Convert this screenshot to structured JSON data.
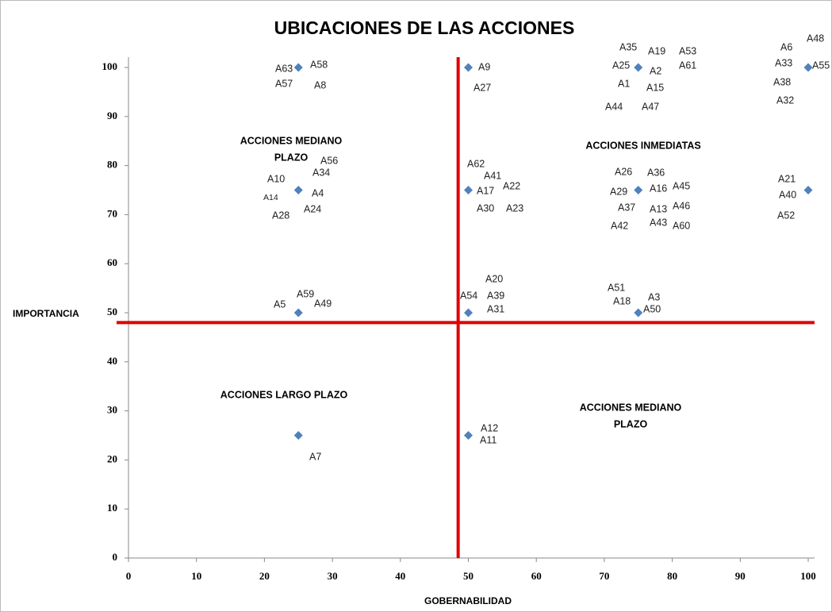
{
  "chart_data": {
    "type": "scatter",
    "title": "UBICACIONES DE LAS ACCIONES",
    "x_label": "GOBERNABILIDAD",
    "y_label": "IMPORTANCIA",
    "x": [
      25,
      50,
      75,
      100,
      25,
      50,
      75,
      100,
      25,
      50,
      75,
      25,
      50
    ],
    "y": [
      100,
      100,
      100,
      100,
      75,
      75,
      75,
      75,
      50,
      50,
      50,
      25,
      25
    ],
    "color": "#4f81bd",
    "xlim": [
      0,
      100
    ],
    "xticks": [
      0,
      10,
      20,
      30,
      40,
      50,
      60,
      70,
      80,
      90,
      100
    ],
    "ylim": [
      0,
      100
    ],
    "yticks": [
      0,
      10,
      20,
      30,
      40,
      50,
      60,
      70,
      80,
      90,
      100
    ],
    "grid": false,
    "reference_lines": {
      "x": 48.5,
      "y": 48,
      "color": "#e00000"
    },
    "quadrant_labels": [
      [
        "ACCIONES MEDIANO",
        "PLAZO"
      ],
      [
        "ACCIONES INMEDIATAS"
      ],
      [
        "ACCIONES LARGO PLAZO"
      ],
      [
        "ACCIONES MEDIANO",
        "PLAZO"
      ]
    ],
    "annotations": [
      "A63",
      "A58",
      "A57",
      "A8",
      "A9",
      "A27",
      "A35",
      "A19",
      "A53",
      "A25",
      "A2",
      "A61",
      "A1",
      "A15",
      "A44",
      "A47",
      "A48",
      "A6",
      "A33",
      "A55",
      "A38",
      "A32",
      "A56",
      "A34",
      "A10",
      "A14",
      "A4",
      "A28",
      "A24",
      "A62",
      "A41",
      "A22",
      "A17",
      "A30",
      "A23",
      "A26",
      "A36",
      "A29",
      "A16",
      "A45",
      "A37",
      "A13",
      "A46",
      "A42",
      "A43",
      "A60",
      "A21",
      "A40",
      "A52",
      "A59",
      "A5",
      "A49",
      "A20",
      "A54",
      "A39",
      "A31",
      "A51",
      "A3",
      "A18",
      "A50",
      "A7",
      "A12",
      "A11"
    ]
  }
}
